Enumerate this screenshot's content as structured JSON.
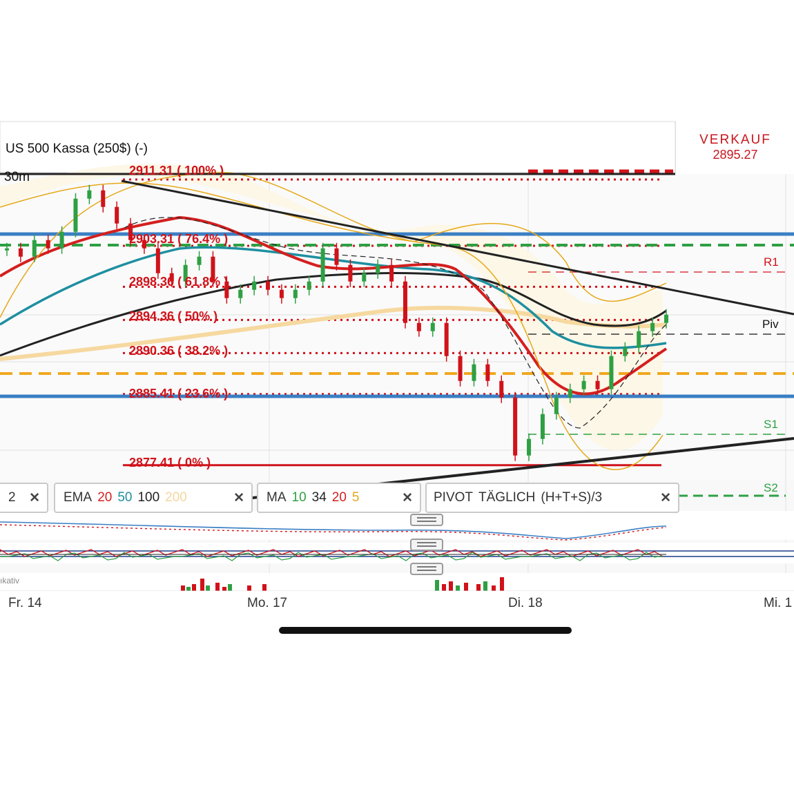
{
  "instrument": "US 500 Kassa (250$) (-)",
  "timeframe": "30m",
  "sell": {
    "label": "VERKAUF",
    "price": "2895.27"
  },
  "fib_levels": [
    {
      "label": "2911.31 ( 100% )"
    },
    {
      "label": "2903.31 ( 76.4% )"
    },
    {
      "label": "2898.36 ( 61.8% )"
    },
    {
      "label": "2894.36 ( 50% )"
    },
    {
      "label": "2890.36 ( 38.2% )"
    },
    {
      "label": "2885.41 ( 23.6% )"
    },
    {
      "label": "2877.41 ( 0% )"
    }
  ],
  "pivot_labels": {
    "r1": "R1",
    "piv": "Piv",
    "s1": "S1",
    "s2": "S2"
  },
  "indicators": {
    "box1": {
      "text": "2",
      "close": "✕"
    },
    "ema": {
      "name": "EMA",
      "p1": "20",
      "p2": "50",
      "p3": "100",
      "p4": "200",
      "close": "✕"
    },
    "ma": {
      "name": "MA",
      "p1": "10",
      "p2": "34",
      "p3": "20",
      "p4": "5",
      "close": "✕"
    },
    "pivot": {
      "name": "PIVOT",
      "mode": "TÄGLICH",
      "formula": "(H+T+S)/3",
      "close": "✕"
    }
  },
  "volume_label": "ıkativ",
  "x_labels": [
    "Fr. 14",
    "Mo. 17",
    "Di. 18",
    "Mi. 1"
  ],
  "colors": {
    "fib": "#d0121a",
    "pivot_green": "#2ea043",
    "blue_level": "#3a7fc4",
    "orange_level": "#f0a820",
    "ema20": "#d41f1f",
    "ema50": "#1e8fa0",
    "ema100": "#222222",
    "ema200": "#f6d9a0",
    "bollinger": "#e6a817"
  },
  "chart_data": {
    "type": "candlestick",
    "title": "US 500 Kassa (250$) (-)",
    "interval": "30m",
    "fibonacci": [
      {
        "pct": 100,
        "price": 2911.31
      },
      {
        "pct": 76.4,
        "price": 2903.31
      },
      {
        "pct": 61.8,
        "price": 2898.36
      },
      {
        "pct": 50,
        "price": 2894.36
      },
      {
        "pct": 38.2,
        "price": 2890.36
      },
      {
        "pct": 23.6,
        "price": 2885.41
      },
      {
        "pct": 0,
        "price": 2877.41
      }
    ],
    "pivots": {
      "R1": 2900.0,
      "Piv": 2892.6,
      "S1": 2882.3,
      "S2": 2879.0
    },
    "close_path": [
      2903,
      2902,
      2904,
      2903,
      2905,
      2909,
      2910,
      2908,
      2906,
      2904,
      2903,
      2900,
      2899,
      2901,
      2902,
      2899,
      2897,
      2898,
      2899,
      2898,
      2897,
      2898,
      2899,
      2903,
      2901,
      2899,
      2900,
      2901,
      2899,
      2894,
      2893,
      2894,
      2890,
      2887,
      2889,
      2887,
      2885,
      2878,
      2880,
      2883,
      2885,
      2886,
      2887,
      2886,
      2890,
      2891,
      2893,
      2894,
      2895
    ],
    "last_price": 2895.27
  }
}
